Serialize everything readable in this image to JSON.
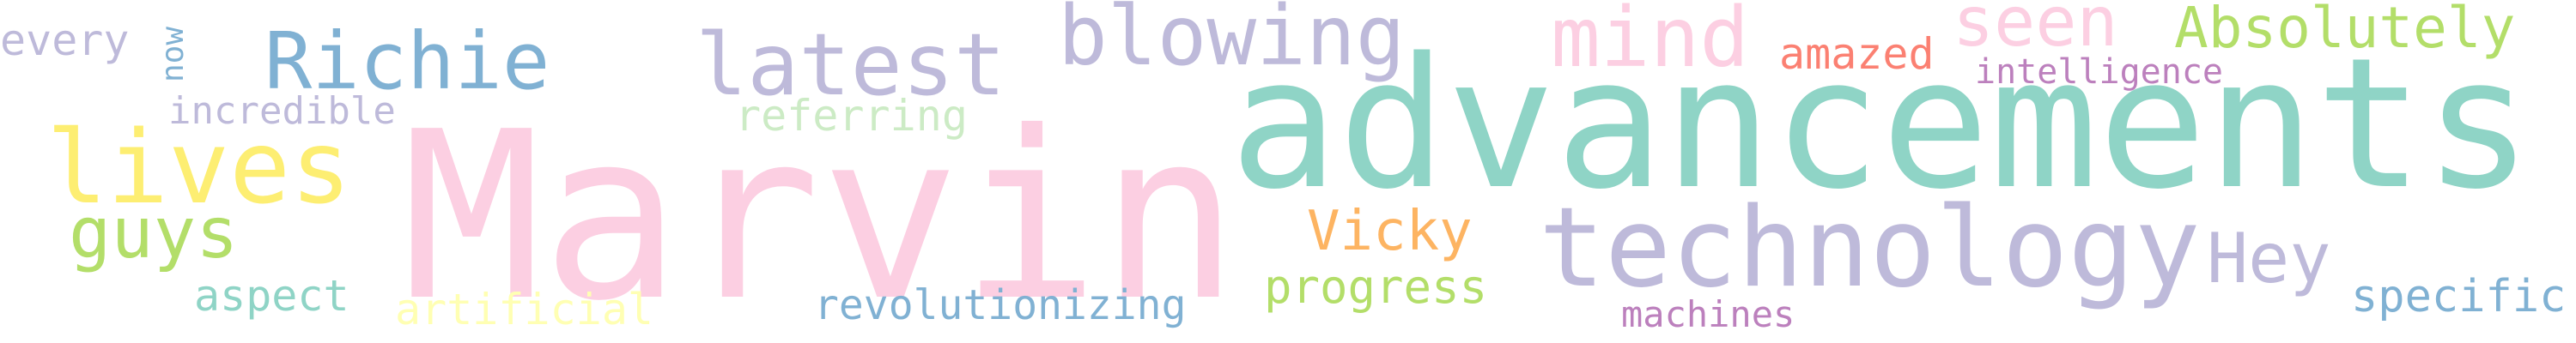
{
  "background": "#ffffff",
  "words": [
    {
      "id": "marvin",
      "text": "Marvin",
      "color": "#fccfe2"
    },
    {
      "id": "advancements",
      "text": "advancements",
      "color": "#8fd4c6"
    },
    {
      "id": "technology",
      "text": "technology",
      "color": "#bebada"
    },
    {
      "id": "lives",
      "text": "lives",
      "color": "#fdee72"
    },
    {
      "id": "richie",
      "text": "Richie",
      "color": "#80b1d3"
    },
    {
      "id": "latest",
      "text": "latest",
      "color": "#bebada"
    },
    {
      "id": "blowing",
      "text": "blowing",
      "color": "#bebada"
    },
    {
      "id": "mind",
      "text": "mind",
      "color": "#fccfe2"
    },
    {
      "id": "seen",
      "text": "seen",
      "color": "#fccfe2"
    },
    {
      "id": "absolutely",
      "text": "Absolutely",
      "color": "#b3de69"
    },
    {
      "id": "guys",
      "text": "guys",
      "color": "#b3de69"
    },
    {
      "id": "hey",
      "text": "Hey",
      "color": "#bebada"
    },
    {
      "id": "vicky",
      "text": "Vicky",
      "color": "#fdb462"
    },
    {
      "id": "amazed",
      "text": "amazed",
      "color": "#fb8072"
    },
    {
      "id": "intelligence",
      "text": "intelligence",
      "color": "#bc80bd"
    },
    {
      "id": "referring",
      "text": "referring",
      "color": "#ccebc5"
    },
    {
      "id": "incredible",
      "text": "incredible",
      "color": "#bebada"
    },
    {
      "id": "every",
      "text": "every",
      "color": "#bebada"
    },
    {
      "id": "now",
      "text": "now",
      "color": "#80b1d3"
    },
    {
      "id": "aspect",
      "text": "aspect",
      "color": "#8fd4c6"
    },
    {
      "id": "artificial",
      "text": "artificial",
      "color": "#ffffb3"
    },
    {
      "id": "revolutionizing",
      "text": "revolutionizing",
      "color": "#80b1d3"
    },
    {
      "id": "progress",
      "text": "progress",
      "color": "#b3de69"
    },
    {
      "id": "machines",
      "text": "machines",
      "color": "#bc80bd"
    },
    {
      "id": "specific",
      "text": "specific",
      "color": "#80b1d3"
    }
  ]
}
